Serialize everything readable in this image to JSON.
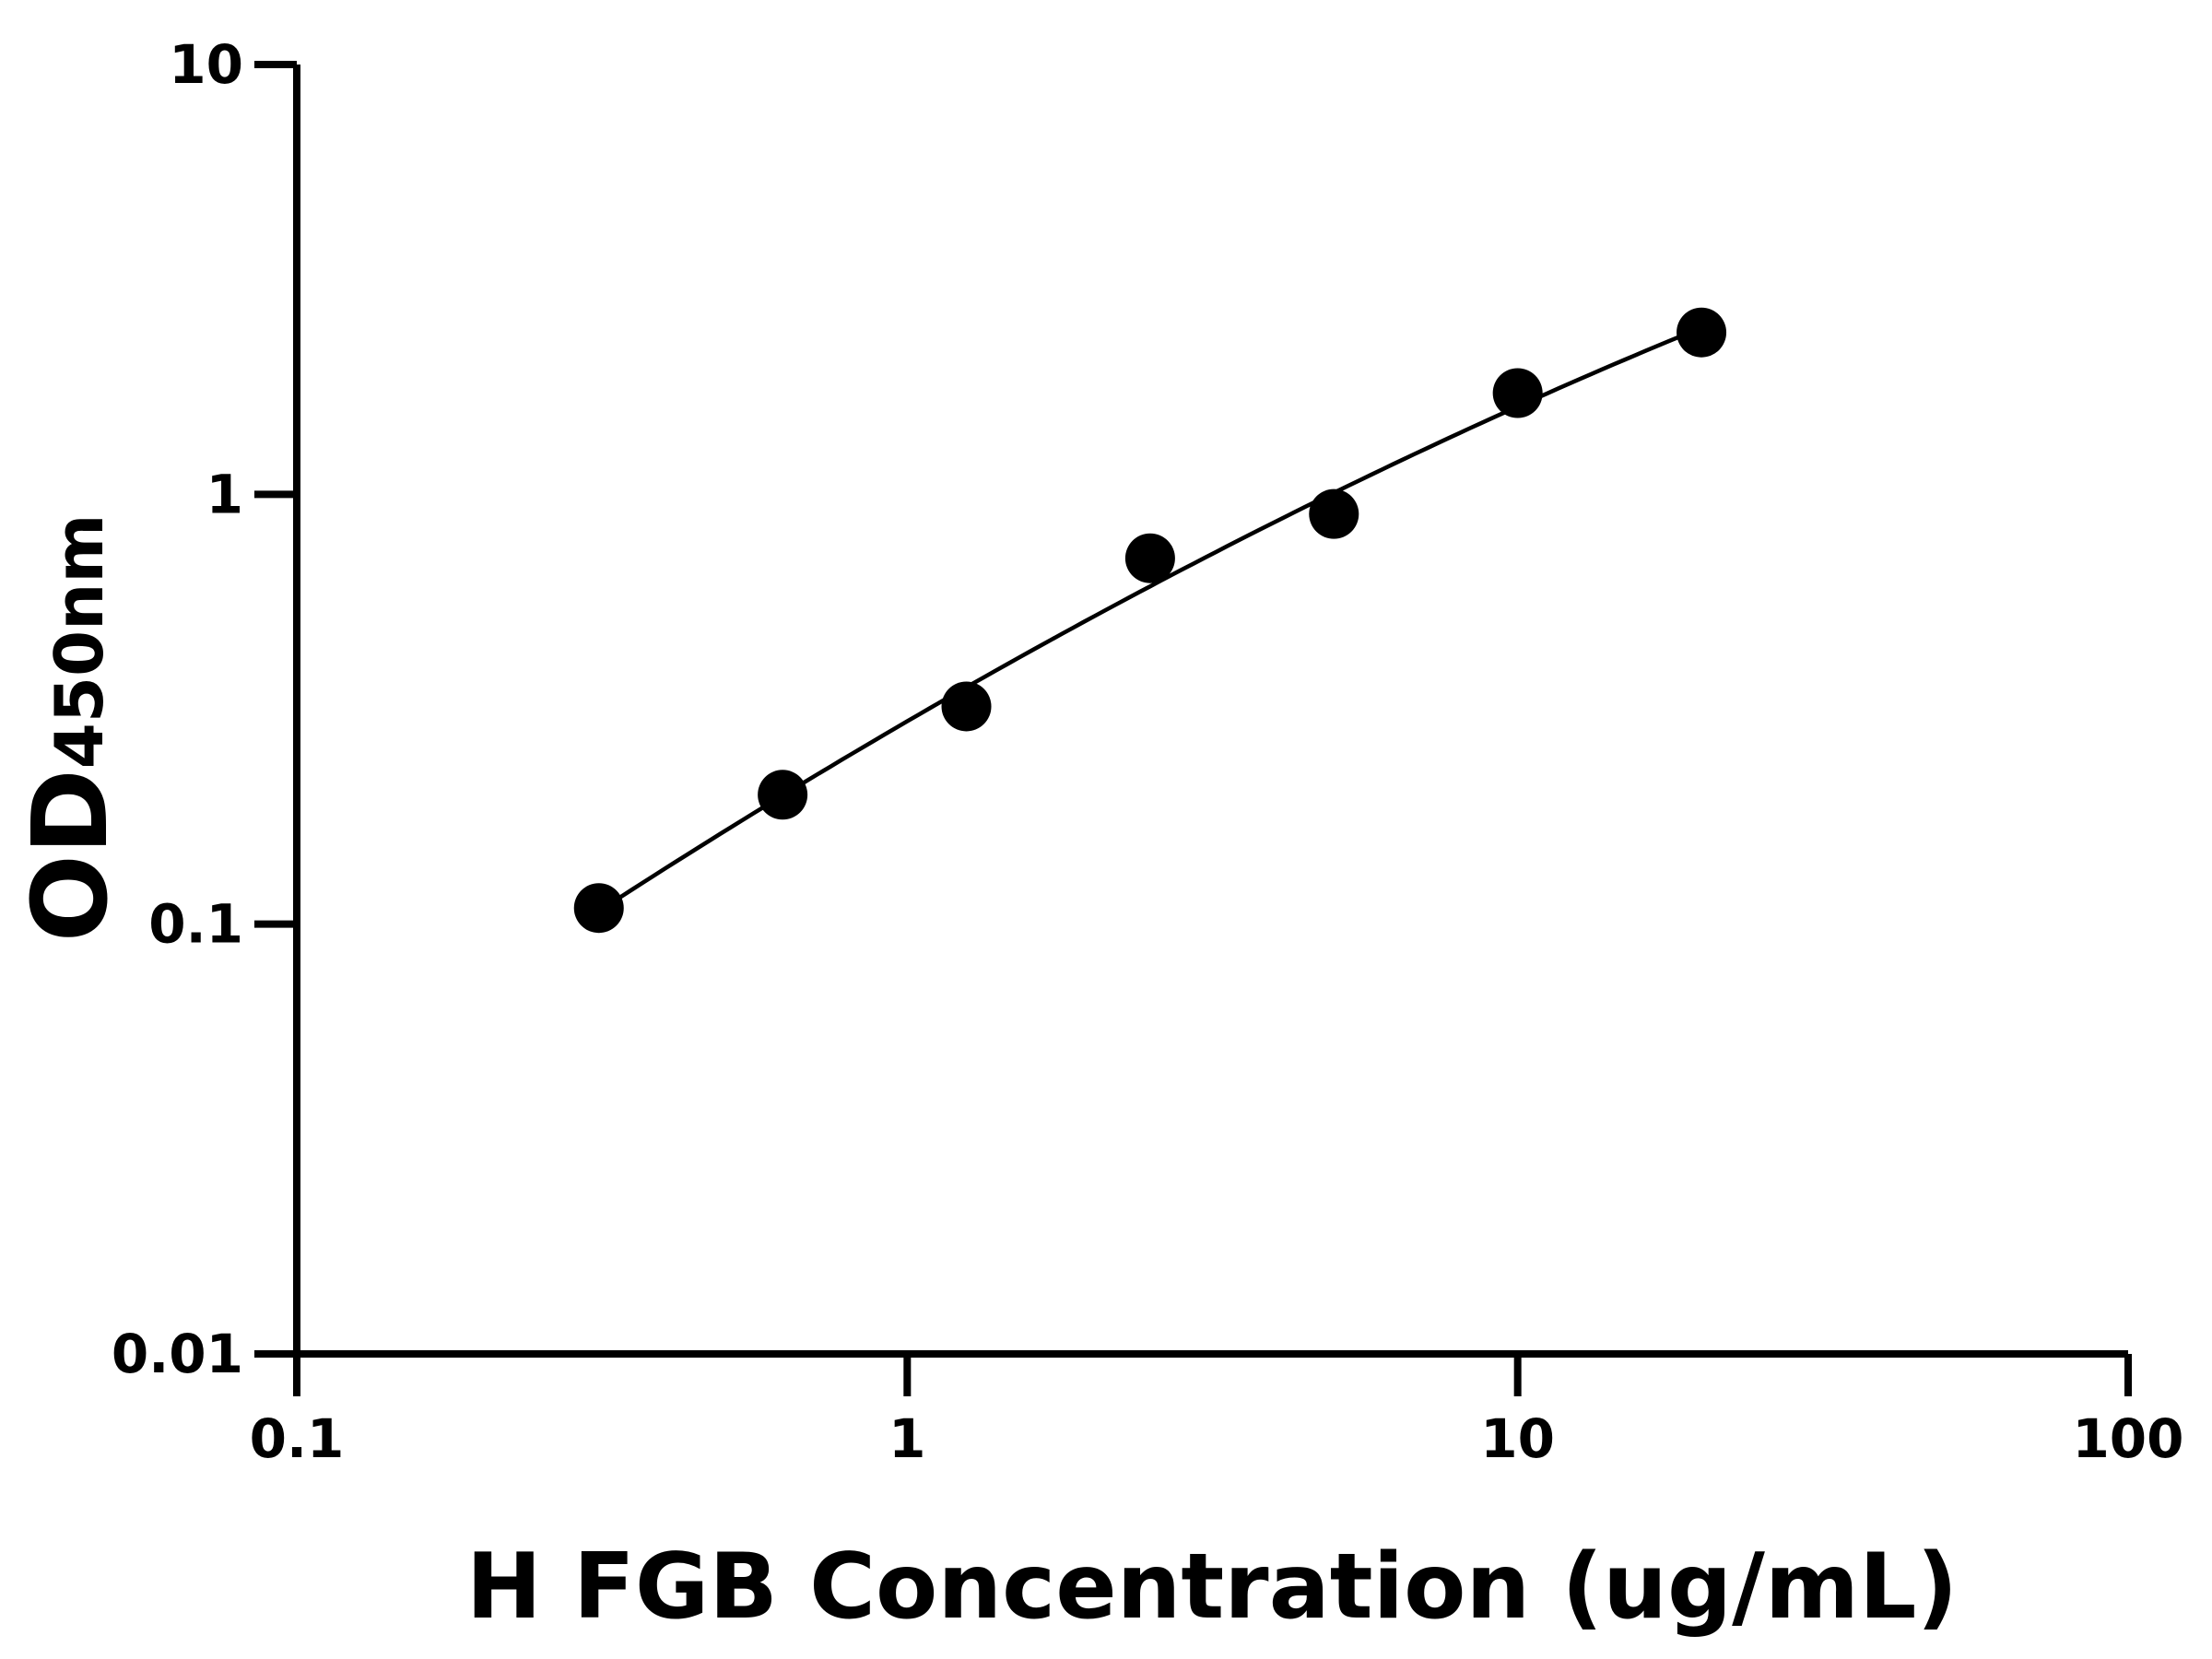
{
  "chart_data": {
    "type": "scatter",
    "title": "",
    "xlabel": "H FGB Concentration (ug/mL)",
    "ylabel": {
      "main": "OD",
      "subscript": "450nm"
    },
    "xscale": "log",
    "yscale": "log",
    "xlim": [
      0.1,
      100
    ],
    "ylim": [
      0.01,
      10
    ],
    "xticks": [
      "0.1",
      "1",
      "10",
      "100"
    ],
    "yticks": [
      "0.01",
      "0.1",
      "1",
      "10"
    ],
    "grid": false,
    "legend": "none",
    "fit_curve": true,
    "marker_color": "#000000",
    "line_color": "#000000",
    "series": [
      {
        "x": [
          0.3125,
          0.625,
          1.25,
          2.5,
          5,
          10,
          20
        ],
        "y": [
          0.109,
          0.2,
          0.321,
          0.71,
          0.9,
          1.72,
          2.38
        ]
      }
    ]
  }
}
